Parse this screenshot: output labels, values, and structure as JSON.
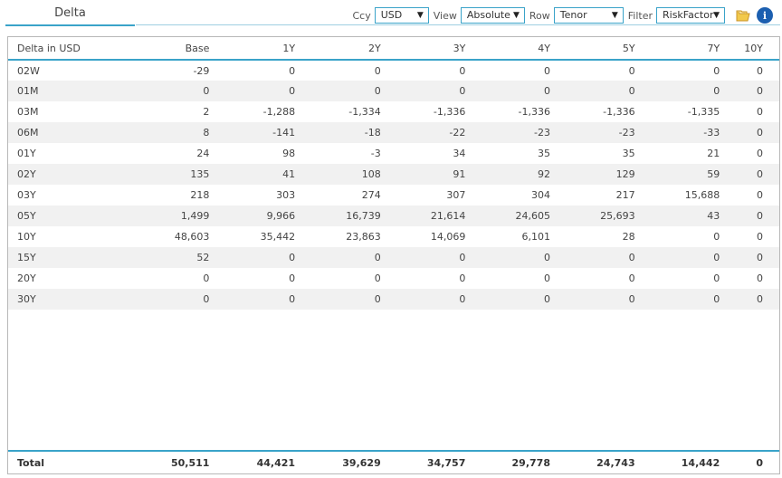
{
  "tab": {
    "label": "Delta"
  },
  "controls": {
    "ccy": {
      "label": "Ccy",
      "value": "USD"
    },
    "view": {
      "label": "View",
      "value": "Absolute"
    },
    "row": {
      "label": "Row",
      "value": "Tenor"
    },
    "filter": {
      "label": "Filter",
      "value": "RiskFactor"
    }
  },
  "icons": {
    "arrow": "▼",
    "info": "i"
  },
  "table": {
    "header": [
      "Delta in USD",
      "Base",
      "1Y",
      "2Y",
      "3Y",
      "4Y",
      "5Y",
      "7Y",
      "10Y"
    ],
    "rows": [
      [
        "02W",
        "-29",
        "0",
        "0",
        "0",
        "0",
        "0",
        "0",
        "0"
      ],
      [
        "01M",
        "0",
        "0",
        "0",
        "0",
        "0",
        "0",
        "0",
        "0"
      ],
      [
        "03M",
        "2",
        "-1,288",
        "-1,334",
        "-1,336",
        "-1,336",
        "-1,336",
        "-1,335",
        "0"
      ],
      [
        "06M",
        "8",
        "-141",
        "-18",
        "-22",
        "-23",
        "-23",
        "-33",
        "0"
      ],
      [
        "01Y",
        "24",
        "98",
        "-3",
        "34",
        "35",
        "35",
        "21",
        "0"
      ],
      [
        "02Y",
        "135",
        "41",
        "108",
        "91",
        "92",
        "129",
        "59",
        "0"
      ],
      [
        "03Y",
        "218",
        "303",
        "274",
        "307",
        "304",
        "217",
        "15,688",
        "0"
      ],
      [
        "05Y",
        "1,499",
        "9,966",
        "16,739",
        "21,614",
        "24,605",
        "25,693",
        "43",
        "0"
      ],
      [
        "10Y",
        "48,603",
        "35,442",
        "23,863",
        "14,069",
        "6,101",
        "28",
        "0",
        "0"
      ],
      [
        "15Y",
        "52",
        "0",
        "0",
        "0",
        "0",
        "0",
        "0",
        "0"
      ],
      [
        "20Y",
        "0",
        "0",
        "0",
        "0",
        "0",
        "0",
        "0",
        "0"
      ],
      [
        "30Y",
        "0",
        "0",
        "0",
        "0",
        "0",
        "0",
        "0",
        "0"
      ]
    ],
    "total": [
      "Total",
      "50,511",
      "44,421",
      "39,629",
      "34,757",
      "29,778",
      "24,743",
      "14,442",
      "0"
    ]
  }
}
